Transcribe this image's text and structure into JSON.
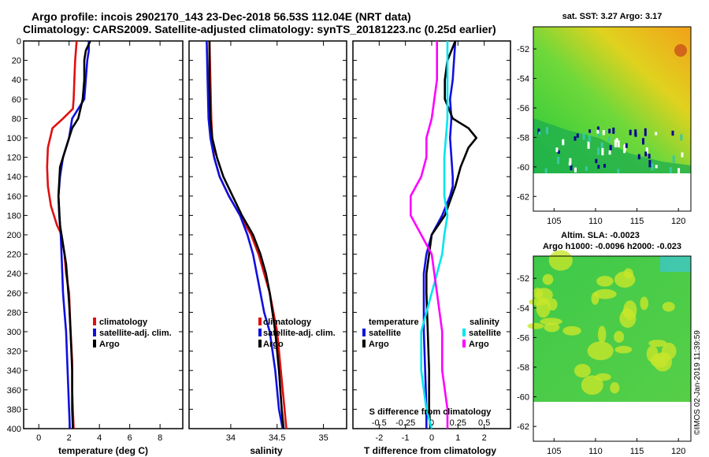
{
  "header": {
    "title_line1": "Argo profile: incois 2902170_143 23-Dec-2018 56.53S 112.04E (NRT data)",
    "title_line2": "Climatology: CARS2009. Satellite-adjusted climatology: synTS_20181223.nc (0.25d earlier)"
  },
  "colors": {
    "climatology": "#e01010",
    "satellite": "#1010e0",
    "argo": "#000000",
    "salinity_sat": "#00e5ee",
    "salinity_argo": "#ff00ff"
  },
  "chart_data": [
    {
      "type": "line",
      "panel": "temperature",
      "xlabel": "temperature (deg C)",
      "ylabel": "depth",
      "xlim": [
        -1,
        9.5
      ],
      "ylim": [
        0,
        400
      ],
      "xticks": [
        "0",
        "2",
        "4",
        "6",
        "8"
      ],
      "xtick_values": [
        0,
        2,
        4,
        6,
        8
      ],
      "yticks": [
        "0",
        "20",
        "40",
        "60",
        "80",
        "100",
        "120",
        "140",
        "160",
        "180",
        "200",
        "220",
        "240",
        "260",
        "280",
        "300",
        "320",
        "340",
        "360",
        "380",
        "400"
      ],
      "series": [
        {
          "name": "climatology",
          "color": "#e01010",
          "x": [
            2.5,
            2.4,
            2.35,
            2.3,
            2.25,
            1.6,
            0.9,
            0.6,
            0.55,
            0.6,
            0.8,
            1.2,
            1.5,
            1.7,
            1.8,
            2.0,
            2.1,
            2.2,
            2.2,
            2.25,
            2.3
          ],
          "y": [
            0,
            20,
            40,
            60,
            70,
            80,
            90,
            110,
            130,
            150,
            170,
            190,
            200,
            220,
            240,
            260,
            300,
            330,
            360,
            380,
            400
          ]
        },
        {
          "name": "satellite-adj. clim.",
          "color": "#1010e0",
          "x": [
            3.3,
            3.3,
            3.2,
            3.1,
            3.0,
            2.2,
            2.0,
            1.6,
            1.4,
            1.3,
            1.35,
            1.45,
            1.5,
            1.55,
            1.6,
            1.7,
            1.8,
            1.9,
            2.0,
            2.05
          ],
          "y": [
            0,
            10,
            20,
            40,
            60,
            80,
            100,
            120,
            140,
            160,
            180,
            200,
            220,
            240,
            260,
            280,
            300,
            340,
            380,
            400
          ]
        },
        {
          "name": "Argo",
          "color": "#000000",
          "x": [
            3.4,
            3.1,
            3.0,
            3.0,
            2.9,
            2.6,
            2.2,
            2.0,
            1.8,
            1.4,
            1.3,
            1.4,
            1.6,
            1.8,
            1.9,
            2.0,
            2.1,
            2.2,
            2.2,
            2.25
          ],
          "y": [
            0,
            10,
            20,
            40,
            60,
            80,
            90,
            100,
            110,
            130,
            160,
            190,
            210,
            230,
            250,
            270,
            300,
            340,
            380,
            400
          ]
        }
      ],
      "legend": [
        "climatology",
        "satellite-adj. clim.",
        "Argo"
      ],
      "legend_position": "lower-right"
    },
    {
      "type": "line",
      "panel": "salinity",
      "xlabel": "salinity",
      "xlim": [
        33.55,
        35.25
      ],
      "ylim": [
        0,
        400
      ],
      "xticks": [
        "34",
        "34.5",
        "35"
      ],
      "xtick_values": [
        34,
        34.5,
        35
      ],
      "series": [
        {
          "name": "climatology",
          "color": "#e01010",
          "x": [
            33.77,
            33.78,
            33.79,
            33.8,
            33.82,
            33.88,
            33.98,
            34.1,
            34.22,
            34.3,
            34.36,
            34.42,
            34.46,
            34.5,
            34.54,
            34.58,
            34.6
          ],
          "y": [
            0,
            40,
            80,
            100,
            120,
            140,
            160,
            180,
            200,
            220,
            240,
            260,
            280,
            300,
            340,
            380,
            400
          ]
        },
        {
          "name": "satellite-adj. clim.",
          "color": "#1010e0",
          "x": [
            33.74,
            33.75,
            33.76,
            33.78,
            33.82,
            33.88,
            33.98,
            34.1,
            34.18,
            34.24,
            34.28,
            34.32,
            34.36,
            34.42,
            34.48,
            34.52,
            34.56
          ],
          "y": [
            0,
            40,
            80,
            100,
            120,
            140,
            160,
            180,
            200,
            220,
            240,
            260,
            280,
            300,
            340,
            380,
            400
          ]
        },
        {
          "name": "Argo",
          "color": "#000000",
          "x": [
            33.77,
            33.77,
            33.78,
            33.8,
            33.85,
            33.92,
            34.02,
            34.12,
            34.24,
            34.32,
            34.38,
            34.42,
            34.45,
            34.48,
            34.52,
            34.55,
            34.57
          ],
          "y": [
            0,
            40,
            80,
            100,
            120,
            140,
            160,
            180,
            200,
            220,
            240,
            260,
            280,
            300,
            340,
            380,
            400
          ]
        }
      ],
      "legend": [
        "climatology",
        "satellite-adj. clim.",
        "Argo"
      ],
      "legend_position": "lower-right"
    },
    {
      "type": "line",
      "panel": "difference",
      "xlabel": "T difference from climatology",
      "top_xlabel": "S difference from climatology",
      "xlim": [
        -3,
        3
      ],
      "ylim": [
        0,
        400
      ],
      "xticks": [
        "-2",
        "-1",
        "0",
        "1",
        "2"
      ],
      "xtick_values": [
        -2,
        -1,
        0,
        1,
        2
      ],
      "top_xticks": [
        "-0.5",
        "-0.25",
        "0",
        "0.25",
        "0.5"
      ],
      "top_xtick_values": [
        -0.5,
        -0.25,
        0,
        0.25,
        0.5
      ],
      "series": [
        {
          "name": "temperature satellite",
          "color": "#1010e0",
          "x": [
            0.9,
            0.85,
            0.8,
            0.7,
            0.75,
            0.7,
            0.75,
            0.8,
            0.8,
            0.7,
            0.4,
            0.0,
            -0.2,
            -0.3,
            -0.3,
            -0.3,
            -0.25,
            -0.2,
            -0.2
          ],
          "y": [
            0,
            20,
            40,
            60,
            80,
            100,
            120,
            140,
            150,
            160,
            180,
            200,
            220,
            240,
            260,
            300,
            340,
            380,
            400
          ]
        },
        {
          "name": "temperature Argo",
          "color": "#000000",
          "x": [
            0.9,
            0.6,
            0.5,
            0.5,
            0.8,
            1.4,
            1.7,
            1.4,
            1.1,
            0.9,
            0.5,
            0.0,
            -0.1,
            -0.2,
            -0.2,
            -0.15,
            -0.1,
            -0.1,
            -0.05
          ],
          "y": [
            0,
            20,
            40,
            60,
            80,
            90,
            100,
            110,
            130,
            150,
            180,
            200,
            220,
            240,
            260,
            300,
            340,
            380,
            400
          ]
        },
        {
          "name": "salinity satellite",
          "color": "#00e5ee",
          "x": [
            0.15,
            0.15,
            0.15,
            0.12,
            0.12,
            0.15,
            0.12,
            0.1,
            0.05,
            0.0,
            -0.05,
            -0.1,
            -0.1,
            -0.05,
            0.0
          ],
          "y": [
            0,
            40,
            80,
            120,
            160,
            180,
            200,
            220,
            240,
            260,
            280,
            300,
            340,
            380,
            400
          ]
        },
        {
          "name": "salinity Argo",
          "color": "#ff00ff",
          "x": [
            0.05,
            0.05,
            0.0,
            -0.05,
            -0.05,
            -0.1,
            -0.2,
            -0.2,
            -0.1,
            0.0,
            0.05,
            0.1,
            0.1,
            0.15,
            0.15
          ],
          "y": [
            0,
            40,
            80,
            100,
            120,
            140,
            160,
            180,
            200,
            220,
            260,
            300,
            340,
            380,
            400
          ]
        }
      ],
      "legend_temperature_heading": "temperature",
      "legend_salinity_heading": "salinity",
      "legend_temperature": [
        "satellite",
        "Argo"
      ],
      "legend_salinity": [
        "satellite",
        "Argo"
      ]
    },
    {
      "type": "heatmap",
      "panel": "sst",
      "title": "sat. SST: 3.27 Argo: 3.17",
      "xticks": [
        "105",
        "110",
        "115",
        "120"
      ],
      "xtick_values": [
        105,
        110,
        115,
        120
      ],
      "yticks": [
        "-52",
        "-54",
        "-56",
        "-58",
        "-60",
        "-62"
      ],
      "ytick_values": [
        -52,
        -54,
        -56,
        -58,
        -60,
        -62
      ],
      "xlim": [
        102.5,
        121.5
      ],
      "ylim": [
        -63,
        -50.5
      ],
      "data_bottom_lat": -60
    },
    {
      "type": "heatmap",
      "panel": "sla",
      "title_line1": "Altim. SLA: -0.0023",
      "title_line2": "Argo h1000: -0.0096 h2000: -0.023",
      "xticks": [
        "105",
        "110",
        "115",
        "120"
      ],
      "xtick_values": [
        105,
        110,
        115,
        120
      ],
      "yticks": [
        "-52",
        "-54",
        "-56",
        "-58",
        "-60",
        "-62"
      ],
      "ytick_values": [
        -52,
        -54,
        -56,
        -58,
        -60,
        -62
      ],
      "xlim": [
        102.5,
        121.5
      ],
      "ylim": [
        -63,
        -50.5
      ],
      "data_bottom_lat": -60
    }
  ],
  "watermark": "©IMOS 02-Jan-2019 11:39:59"
}
